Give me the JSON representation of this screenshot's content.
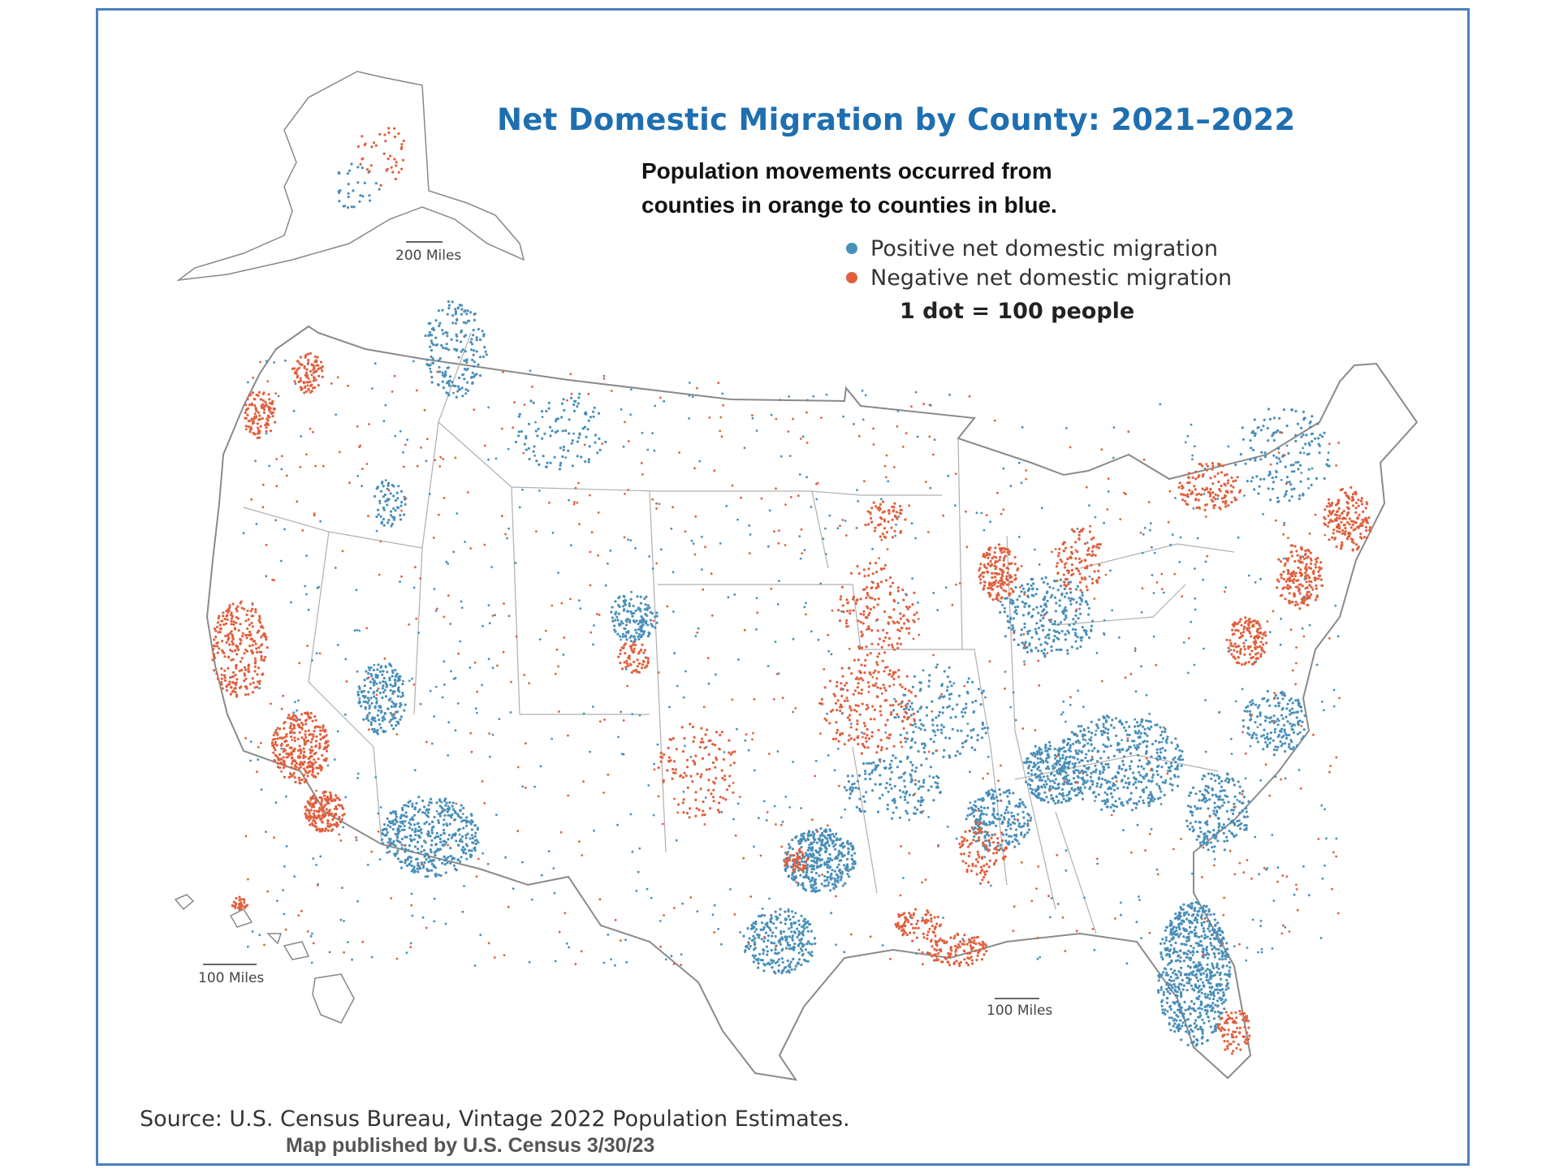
{
  "title": "Net Domestic Migration by County: 2021–2022",
  "subtitle": "Population movements occurred from counties in orange to counties in blue.",
  "legend": {
    "positive": {
      "label": "Positive net domestic migration",
      "color": "#4a8fb8"
    },
    "negative": {
      "label": "Negative net domestic migration",
      "color": "#e0603e"
    }
  },
  "dot_scale": "1 dot = 100 people",
  "scale_bars": {
    "alaska": "200 Miles",
    "hawaii": "100 Miles",
    "mainland": "100 Miles"
  },
  "source": "Source: U.S. Census Bureau, Vintage 2022 Population Estimates.",
  "published": "Map published by U.S. Census 3/30/23",
  "colors": {
    "border": "#4a7fc0",
    "title": "#1f6fb0",
    "state_line": "#9a9a9a"
  }
}
